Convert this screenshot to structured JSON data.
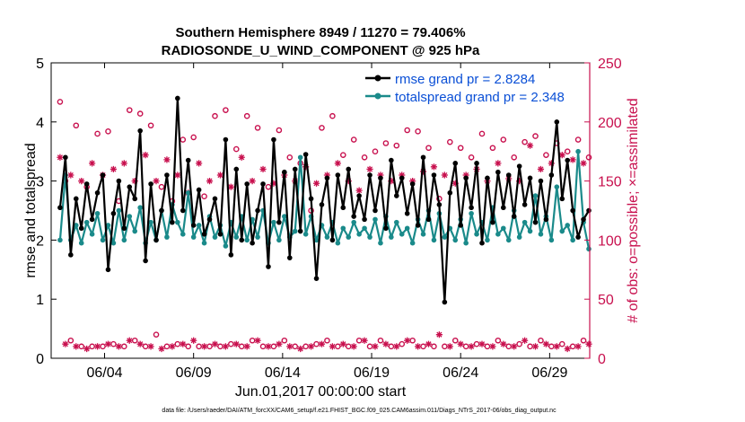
{
  "colors": {
    "rmse": "#000000",
    "spread": "#1a8a8a",
    "obs": "#c8104e",
    "legend_text": "#0a4fd6",
    "axis": "#000000"
  },
  "chart_data": {
    "type": "line",
    "title_line1": "Southern Hemisphere 8949 / 11270 = 79.406%",
    "title_line2": "RADIOSONDE_U_WIND_COMPONENT @ 925 hPa",
    "xlabel": "Jun.01,2017 00:00:00 start",
    "ylabel_left": "rmse and totalspread",
    "ylabel_right": "# of obs: o=possible; ×=assimilated",
    "footnote": "data file: /Users/raeder/DAI/ATM_forcXX/CAM6_setup/f.e21.FHIST_BGC.f09_025.CAM6assim.011/Diags_NTrS_2017-06/obs_diag_output.nc",
    "xlim": [
      0.5,
      30.75
    ],
    "ylim_left": [
      0,
      5
    ],
    "ylim_right": [
      0,
      250
    ],
    "x_ticks": [
      3.5,
      8.5,
      13.5,
      18.5,
      23.5,
      28.5
    ],
    "x_tick_labels": [
      "06/04",
      "06/09",
      "06/14",
      "06/19",
      "06/24",
      "06/29"
    ],
    "y_left_ticks": [
      "0",
      "1",
      "2",
      "3",
      "4",
      "5"
    ],
    "y_right_ticks": [
      "0",
      "50",
      "100",
      "150",
      "200",
      "250"
    ],
    "legend": {
      "rmse": "rmse grand pr = 2.8284",
      "spread": "totalspread grand pr = 2.348"
    },
    "series": [
      {
        "name": "rmse",
        "axis": "left",
        "values": [
          2.55,
          3.4,
          1.75,
          2.7,
          2.2,
          2.95,
          2.35,
          2.8,
          3.1,
          1.5,
          2.45,
          3.0,
          2.2,
          2.9,
          2.7,
          3.85,
          1.65,
          2.95,
          2.0,
          2.5,
          3.1,
          2.3,
          4.4,
          2.5,
          3.35,
          2.25,
          2.85,
          2.1,
          2.35,
          2.7,
          2.1,
          3.7,
          1.75,
          3.2,
          2.0,
          2.95,
          1.95,
          2.5,
          2.95,
          1.55,
          3.7,
          2.3,
          3.15,
          1.7,
          3.2,
          2.15,
          3.45,
          2.7,
          1.35,
          2.6,
          3.05,
          2.0,
          3.1,
          2.55,
          3.2,
          2.4,
          2.75,
          2.35,
          3.1,
          2.5,
          3.05,
          2.2,
          3.35,
          2.75,
          3.05,
          2.45,
          2.95,
          2.25,
          3.4,
          2.35,
          3.1,
          2.6,
          0.95,
          2.8,
          3.3,
          2.25,
          3.05,
          2.55,
          3.3,
          1.95,
          3.05,
          2.3,
          3.15,
          2.55,
          3.1,
          2.4,
          3.25,
          2.6,
          3.05,
          2.3,
          3.0,
          2.35,
          3.1,
          4.0,
          2.7,
          3.35,
          2.5,
          2.05,
          2.35,
          2.5
        ]
      },
      {
        "name": "totalspread",
        "axis": "left",
        "values": [
          2.0,
          3.1,
          2.0,
          2.25,
          1.95,
          2.3,
          2.1,
          2.45,
          2.0,
          2.25,
          1.95,
          2.5,
          2.0,
          2.4,
          2.15,
          2.55,
          1.95,
          2.3,
          2.0,
          2.5,
          2.05,
          2.6,
          2.3,
          2.1,
          2.8,
          2.05,
          2.25,
          1.95,
          2.4,
          2.05,
          2.25,
          1.9,
          2.3,
          2.05,
          2.4,
          2.0,
          2.35,
          2.05,
          2.5,
          1.95,
          2.3,
          2.0,
          2.4,
          2.05,
          2.15,
          3.4,
          2.1,
          2.4,
          2.0,
          2.25,
          2.05,
          2.3,
          1.95,
          2.2,
          2.05,
          2.3,
          2.1,
          2.2,
          2.05,
          2.35,
          1.95,
          2.4,
          2.05,
          2.3,
          2.1,
          2.2,
          1.95,
          2.35,
          2.1,
          2.5,
          2.0,
          2.45,
          2.05,
          2.2,
          2.0,
          2.35,
          1.95,
          2.45,
          2.1,
          2.3,
          2.0,
          2.55,
          2.1,
          2.2,
          2.0,
          2.5,
          2.05,
          2.3,
          2.15,
          2.75,
          2.1,
          2.4,
          2.0,
          2.9,
          2.15,
          2.25,
          2.0,
          3.5,
          2.3,
          1.85
        ]
      },
      {
        "name": "possible",
        "axis": "right",
        "values": [
          217,
          150,
          15,
          197,
          10,
          145,
          10,
          190,
          10,
          192,
          12,
          133,
          10,
          210,
          15,
          207,
          10,
          197,
          20,
          145,
          10,
          133,
          12,
          185,
          10,
          187,
          10,
          137,
          10,
          205,
          10,
          210,
          12,
          177,
          10,
          205,
          15,
          195,
          10,
          145,
          10,
          193,
          15,
          170,
          10,
          165,
          10,
          125,
          12,
          195,
          15,
          205,
          10,
          172,
          10,
          185,
          15,
          170,
          10,
          175,
          15,
          182,
          10,
          180,
          12,
          193,
          15,
          192,
          10,
          178,
          10,
          135,
          10,
          183,
          15,
          178,
          10,
          170,
          12,
          190,
          10,
          178,
          15,
          185,
          10,
          170,
          12,
          183,
          10,
          188,
          15,
          172,
          10,
          182,
          12,
          175,
          10,
          185,
          15,
          170
        ]
      },
      {
        "name": "assimilated",
        "axis": "right",
        "values": [
          170,
          12,
          155,
          10,
          150,
          8,
          165,
          10,
          155,
          12,
          160,
          10,
          165,
          15,
          150,
          12,
          172,
          10,
          150,
          8,
          168,
          10,
          155,
          12,
          140,
          15,
          165,
          10,
          150,
          12,
          155,
          10,
          145,
          12,
          170,
          10,
          150,
          15,
          160,
          10,
          148,
          12,
          155,
          10,
          150,
          8,
          162,
          10,
          148,
          12,
          155,
          10,
          165,
          12,
          150,
          10,
          142,
          15,
          160,
          10,
          155,
          12,
          150,
          10,
          155,
          15,
          150,
          10,
          158,
          12,
          162,
          20,
          155,
          10,
          148,
          12,
          155,
          10,
          160,
          12,
          150,
          10,
          165,
          12,
          152,
          10,
          150,
          15,
          180,
          10,
          160,
          12,
          165,
          10,
          172,
          8,
          168,
          10,
          165,
          12
        ]
      }
    ]
  }
}
